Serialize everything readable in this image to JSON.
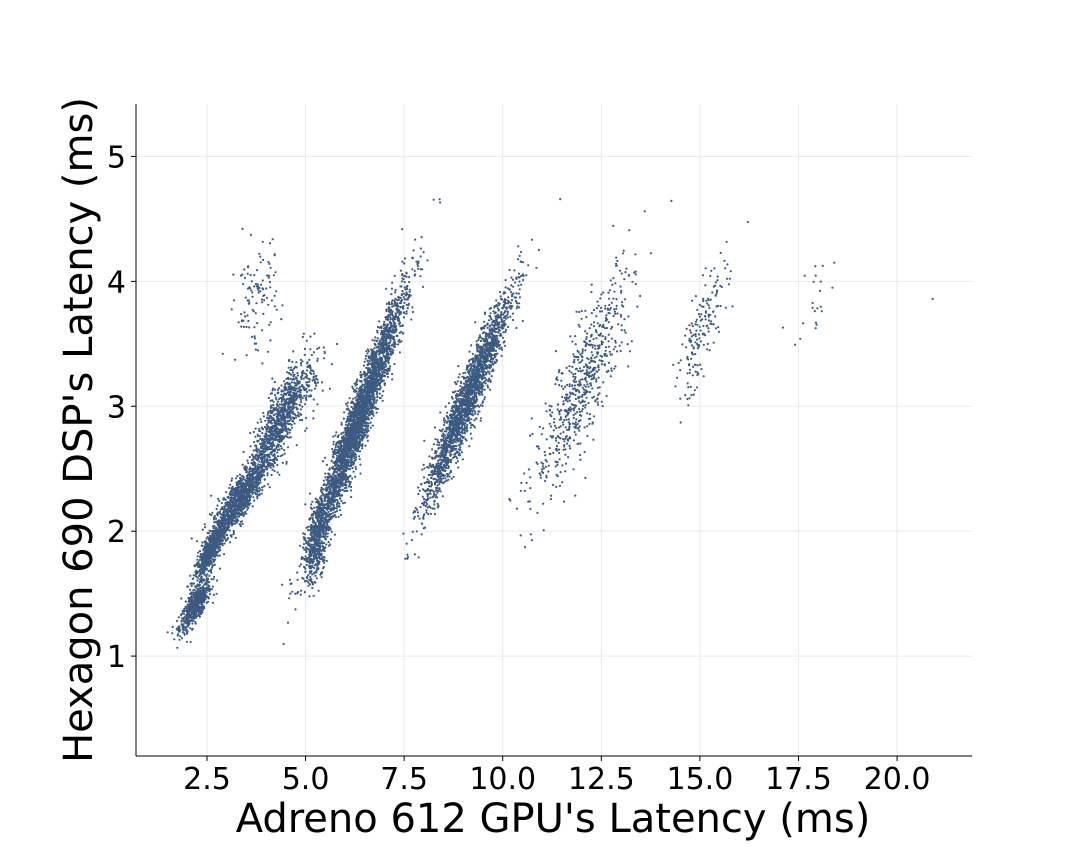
{
  "chart_data": {
    "type": "scatter",
    "title": "",
    "xlabel": "Adreno 612 GPU's Latency (ms)",
    "ylabel": "Hexagon 690 DSP's Latency (ms)",
    "xlim": [
      0.7,
      21.9
    ],
    "ylim": [
      0.2,
      5.42
    ],
    "xticks": [
      2.5,
      5.0,
      7.5,
      10.0,
      12.5,
      15.0,
      17.5,
      20.0
    ],
    "xtick_labels": [
      "2.5",
      "5.0",
      "7.5",
      "10.0",
      "12.5",
      "15.0",
      "17.5",
      "20.0"
    ],
    "yticks": [
      1,
      2,
      3,
      4,
      5
    ],
    "ytick_labels": [
      "1",
      "2",
      "3",
      "4",
      "5"
    ],
    "grid": true,
    "marker_color": "#3d5a80",
    "series": [
      {
        "clusters": [
          {
            "x": [
              1.8,
              2.6
            ],
            "y": [
              1.2,
              1.6
            ],
            "n": 600,
            "corr": 0.8
          },
          {
            "x": [
              2.2,
              3.0
            ],
            "y": [
              1.6,
              2.1
            ],
            "n": 700,
            "corr": 0.85
          },
          {
            "x": [
              2.6,
              4.0
            ],
            "y": [
              1.9,
              2.6
            ],
            "n": 1100,
            "corr": 0.85
          },
          {
            "x": [
              3.6,
              5.0
            ],
            "y": [
              2.4,
              3.3
            ],
            "n": 900,
            "corr": 0.8
          },
          {
            "x": [
              4.3,
              5.5
            ],
            "y": [
              2.8,
              3.5
            ],
            "n": 150,
            "corr": 0.5
          },
          {
            "x": [
              3.2,
              4.3
            ],
            "y": [
              3.4,
              4.3
            ],
            "n": 110,
            "corr": 0.2
          },
          {
            "x": [
              5.0,
              5.6
            ],
            "y": [
              1.6,
              2.3
            ],
            "n": 500,
            "corr": 0.5
          },
          {
            "x": [
              5.2,
              7.5
            ],
            "y": [
              1.9,
              3.9
            ],
            "n": 3200,
            "corr": 0.96
          },
          {
            "x": [
              8.0,
              10.2
            ],
            "y": [
              2.2,
              3.9
            ],
            "n": 2200,
            "corr": 0.95
          },
          {
            "x": [
              10.8,
              13.3
            ],
            "y": [
              2.3,
              4.1
            ],
            "n": 650,
            "corr": 0.85
          },
          {
            "x": [
              14.4,
              15.7
            ],
            "y": [
              3.0,
              4.2
            ],
            "n": 170,
            "corr": 0.8
          },
          {
            "x": [
              17.4,
              18.5
            ],
            "y": [
              3.5,
              4.25
            ],
            "n": 22,
            "corr": 0.5
          }
        ],
        "outliers": [
          [
            20.9,
            3.86
          ],
          [
            3.4,
            4.42
          ],
          [
            2.9,
            3.42
          ]
        ]
      }
    ]
  }
}
